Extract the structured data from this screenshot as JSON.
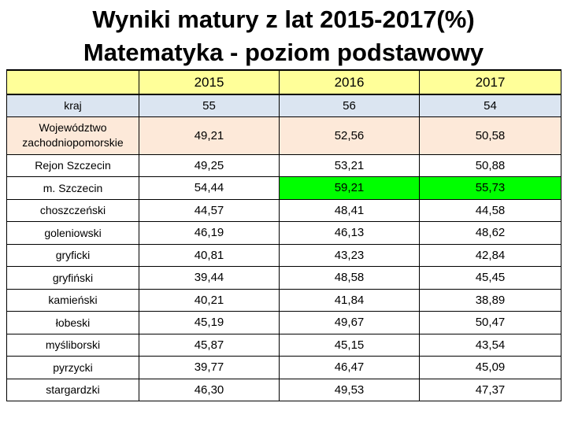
{
  "title": {
    "line1": "Wyniki matury z lat 2015-2017(%)",
    "line2": "Matematyka - poziom podstawowy"
  },
  "colors": {
    "header_bg": "#ffff99",
    "kraj_bg": "#dbe5f1",
    "wojewodztwo_bg": "#fde9d9",
    "highlight": "#00ff00"
  },
  "table": {
    "headers": [
      "",
      "2015",
      "2016",
      "2017"
    ],
    "rows": [
      {
        "label": "kraj",
        "values": [
          "55",
          "56",
          "54"
        ]
      },
      {
        "label": "Województwo zachodniopomorskie",
        "values": [
          "49,21",
          "52,56",
          "50,58"
        ]
      },
      {
        "label": "Rejon Szczecin",
        "values": [
          "49,25",
          "53,21",
          "50,88"
        ]
      },
      {
        "label": "m. Szczecin",
        "values": [
          "54,44",
          "59,21",
          "55,73"
        ]
      },
      {
        "label": "choszczeński",
        "values": [
          "44,57",
          "48,41",
          "44,58"
        ]
      },
      {
        "label": "goleniowski",
        "values": [
          "46,19",
          "46,13",
          "48,62"
        ]
      },
      {
        "label": "gryficki",
        "values": [
          "40,81",
          "43,23",
          "42,84"
        ]
      },
      {
        "label": "gryfiński",
        "values": [
          "39,44",
          "48,58",
          "45,45"
        ]
      },
      {
        "label": "kamieński",
        "values": [
          "40,21",
          "41,84",
          "38,89"
        ]
      },
      {
        "label": "łobeski",
        "values": [
          "45,19",
          "49,67",
          "50,47"
        ]
      },
      {
        "label": "myśliborski",
        "values": [
          "45,87",
          "45,15",
          "43,54"
        ]
      },
      {
        "label": "pyrzycki",
        "values": [
          "39,77",
          "46,47",
          "45,09"
        ]
      },
      {
        "label": "stargardzki",
        "values": [
          "46,30",
          "49,53",
          "47,37"
        ]
      }
    ]
  }
}
